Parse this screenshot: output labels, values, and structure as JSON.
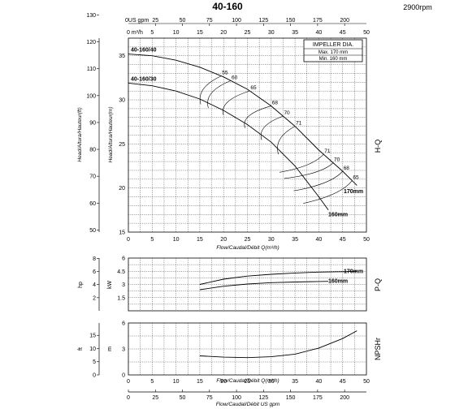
{
  "header": {
    "title": "40-160",
    "speed": "2900rpm"
  },
  "chart_data": {
    "type": "line",
    "flow_axis_label": "Flow/Caudal/Débit Q(m³/h)",
    "flow_top_label": "0 m³/h",
    "flow_usgpm_top_label": "0US gpm",
    "flow_usgpm_bottom_label": "Flow/Caudal/Débit  US gpm",
    "flow_ticks": [
      0,
      5,
      10,
      15,
      20,
      25,
      30,
      35,
      40,
      45,
      50
    ],
    "flow_usgpm_ticks": [
      "25",
      "50",
      "75",
      "100",
      "125",
      "150",
      "175",
      "200"
    ],
    "flow_usgpm_bottom_ticks": [
      "0",
      "25",
      "50",
      "75",
      "100",
      "125",
      "150",
      "175",
      "200"
    ],
    "head": {
      "ylabel_m": "Head/Altura/Hauteur(m)",
      "ylabel_ft": "Head/Altura/Hauteur(ft)",
      "side_label": "H-Q",
      "m_ticks": [
        15,
        20,
        25,
        30,
        35
      ],
      "m_range": [
        15,
        37
      ],
      "ft_ticks": [
        50,
        60,
        70,
        80,
        90,
        100,
        110,
        120,
        130
      ],
      "series": [
        {
          "name": "40-160/40",
          "impeller": "170mm",
          "q": [
            0,
            5,
            10,
            15,
            20,
            25,
            30,
            35,
            40,
            45,
            48
          ],
          "h": [
            35.2,
            35.0,
            34.5,
            33.7,
            32.6,
            31.2,
            29.3,
            27.0,
            24.3,
            21.9,
            20.3
          ]
        },
        {
          "name": "40-160/30",
          "impeller": "160mm",
          "q": [
            0,
            5,
            10,
            15,
            20,
            25,
            30,
            35,
            40,
            42
          ],
          "h": [
            31.9,
            31.6,
            31.0,
            30.1,
            28.8,
            27.2,
            25.2,
            22.5,
            19.0,
            17.5
          ]
        }
      ],
      "efficiency_labels": [
        "55",
        "60",
        "65",
        "68",
        "70",
        "71",
        "71",
        "70",
        "68",
        "65"
      ],
      "impeller_box": {
        "title": "IMPELLER DIA.",
        "max": "Max.  170 mm",
        "min": "Min.  160 mm"
      }
    },
    "power": {
      "ylabel_kw": "kW",
      "ylabel_hp": "hp",
      "side_label": "P-Q",
      "kw_ticks": [
        "1.5",
        "3",
        "4.5",
        "6"
      ],
      "kw_range": [
        0,
        6
      ],
      "hp_ticks": [
        2,
        4,
        6,
        8
      ],
      "series": [
        {
          "name": "170mm",
          "q": [
            15,
            20,
            25,
            30,
            35,
            40,
            45,
            48
          ],
          "p": [
            3.0,
            3.6,
            3.95,
            4.15,
            4.3,
            4.4,
            4.45,
            4.5
          ]
        },
        {
          "name": "160mm",
          "q": [
            15,
            20,
            25,
            30,
            35,
            40,
            42
          ],
          "p": [
            2.4,
            2.8,
            3.05,
            3.2,
            3.28,
            3.33,
            3.35
          ]
        }
      ]
    },
    "npsh": {
      "ylabel_m": "m",
      "ylabel_ft": "ft",
      "side_label": "NPSHr",
      "m_ticks": [
        0,
        3,
        6
      ],
      "m_range": [
        0,
        6
      ],
      "ft_ticks": [
        0,
        5,
        10,
        15
      ],
      "series": [
        {
          "name": "NPSHr",
          "q": [
            15,
            20,
            25,
            30,
            35,
            40,
            45,
            48
          ],
          "npsh": [
            2.2,
            2.05,
            2.0,
            2.1,
            2.4,
            3.1,
            4.2,
            5.1
          ]
        }
      ]
    }
  }
}
